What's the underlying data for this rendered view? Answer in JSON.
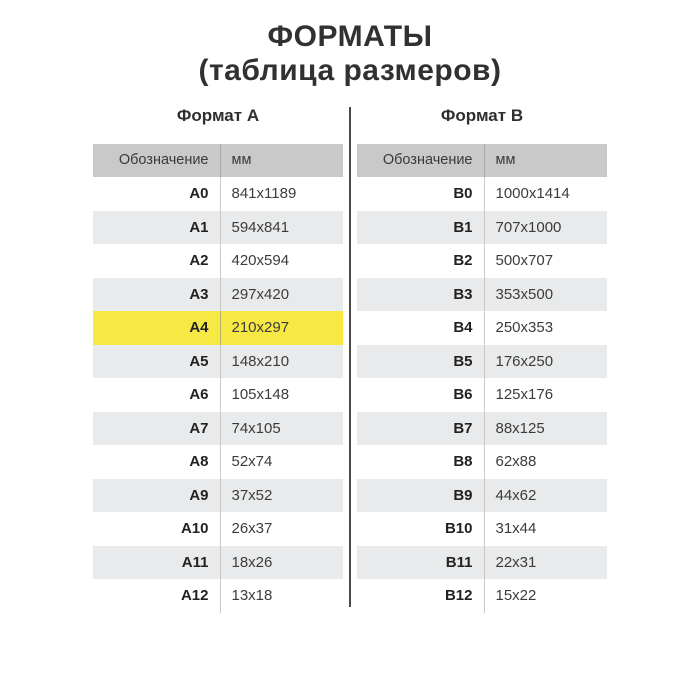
{
  "title": {
    "line1": "ФОРМАТЫ",
    "line2": "(таблица размеров)"
  },
  "columns": {
    "designation": "Обозначение",
    "unit": "мм"
  },
  "tables": [
    {
      "heading": "Формат А",
      "rows": [
        {
          "code": "A0",
          "size": "841x1189",
          "hl": false
        },
        {
          "code": "A1",
          "size": "594x841",
          "hl": false
        },
        {
          "code": "A2",
          "size": "420x594",
          "hl": false
        },
        {
          "code": "A3",
          "size": "297x420",
          "hl": false
        },
        {
          "code": "A4",
          "size": "210x297",
          "hl": true
        },
        {
          "code": "A5",
          "size": "148x210",
          "hl": false
        },
        {
          "code": "A6",
          "size": "105x148",
          "hl": false
        },
        {
          "code": "A7",
          "size": "74x105",
          "hl": false
        },
        {
          "code": "A8",
          "size": "52x74",
          "hl": false
        },
        {
          "code": "A9",
          "size": "37x52",
          "hl": false
        },
        {
          "code": "A10",
          "size": "26x37",
          "hl": false
        },
        {
          "code": "A11",
          "size": "18x26",
          "hl": false
        },
        {
          "code": "A12",
          "size": "13x18",
          "hl": false
        }
      ]
    },
    {
      "heading": "Формат B",
      "rows": [
        {
          "code": "B0",
          "size": "1000x1414",
          "hl": false
        },
        {
          "code": "B1",
          "size": "707x1000",
          "hl": false
        },
        {
          "code": "B2",
          "size": "500x707",
          "hl": false
        },
        {
          "code": "B3",
          "size": "353x500",
          "hl": false
        },
        {
          "code": "B4",
          "size": "250x353",
          "hl": false
        },
        {
          "code": "B5",
          "size": "176x250",
          "hl": false
        },
        {
          "code": "B6",
          "size": "125x176",
          "hl": false
        },
        {
          "code": "B7",
          "size": "88x125",
          "hl": false
        },
        {
          "code": "B8",
          "size": "62x88",
          "hl": false
        },
        {
          "code": "B9",
          "size": "44x62",
          "hl": false
        },
        {
          "code": "B10",
          "size": "31x44",
          "hl": false
        },
        {
          "code": "B11",
          "size": "22x31",
          "hl": false
        },
        {
          "code": "B12",
          "size": "15x22",
          "hl": false
        }
      ]
    }
  ],
  "colors": {
    "header_bg": "#c9c9c9",
    "row_alt_bg": "#e8eaeb",
    "highlight_bg": "#f7e843",
    "center_divider": "#4a4a4a",
    "text": "#2f2f2f"
  }
}
